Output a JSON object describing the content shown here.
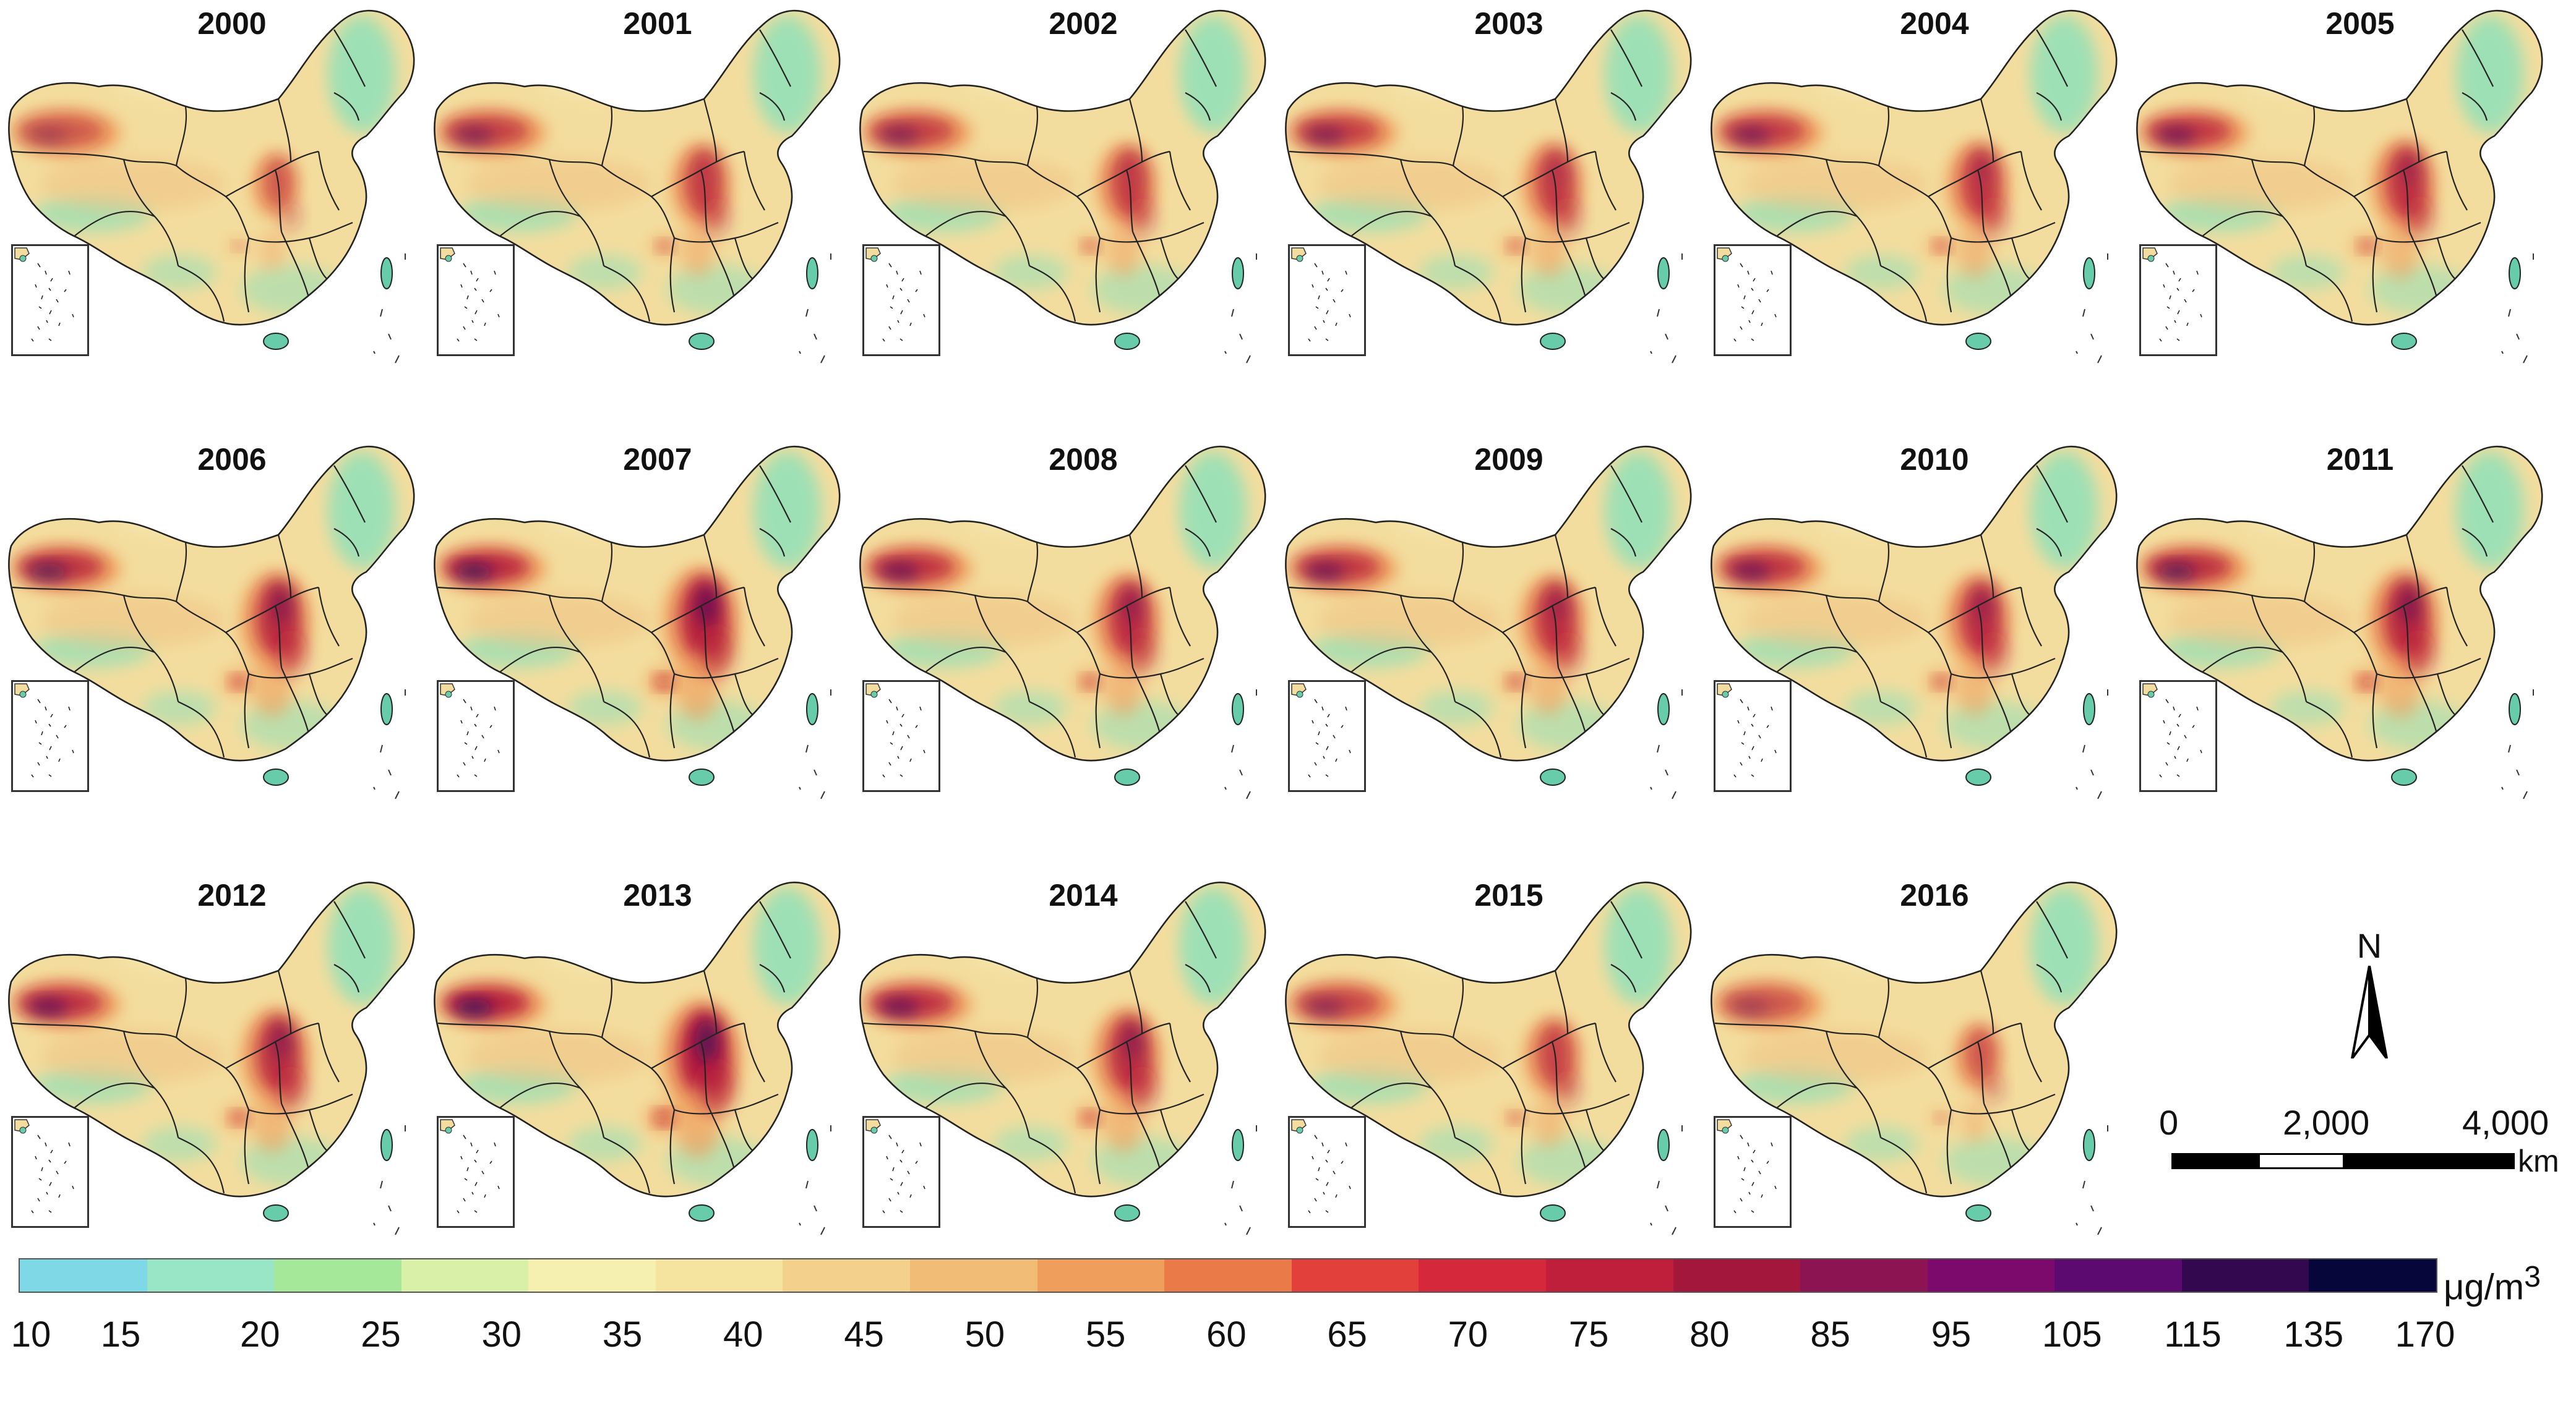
{
  "map_years": [
    "2000",
    "2001",
    "2002",
    "2003",
    "2004",
    "2005",
    "2006",
    "2007",
    "2008",
    "2009",
    "2010",
    "2011",
    "2012",
    "2013",
    "2014",
    "2015",
    "2016"
  ],
  "north_arrow": {
    "label": "N"
  },
  "scale_bar": {
    "ticks": [
      "0",
      "2,000",
      "4,000"
    ],
    "unit": "km"
  },
  "legend": {
    "unit": "μg/m3",
    "ticks": [
      "10",
      "15",
      "20",
      "25",
      "30",
      "35",
      "40",
      "45",
      "50",
      "55",
      "60",
      "65",
      "70",
      "75",
      "80",
      "85",
      "95",
      "105",
      "115",
      "135",
      "170"
    ],
    "colors": [
      "#7fd8e6",
      "#98e6c6",
      "#a6e89a",
      "#d8f0a8",
      "#f5f0b0",
      "#f5e4a0",
      "#f3d08c",
      "#f1bd76",
      "#ef9e5c",
      "#ea7a48",
      "#e2403a",
      "#d5283a",
      "#c01f3c",
      "#a3173c",
      "#8c1452",
      "#7c0a6c",
      "#5c0a70",
      "#34084f",
      "#06063a"
    ]
  },
  "colors": {
    "low": "#8fe0b8",
    "base": "#f3dd9e",
    "medium": "#ef9e5c",
    "high": "#b71c3c",
    "very_high": "#3a0a60",
    "coast": "#66ccaa",
    "border": "#222222"
  },
  "map_intensity": [
    0.6,
    0.78,
    0.78,
    0.8,
    0.82,
    0.85,
    0.92,
    1.0,
    0.88,
    0.86,
    0.87,
    0.94,
    0.9,
    1.05,
    0.9,
    0.74,
    0.62
  ]
}
